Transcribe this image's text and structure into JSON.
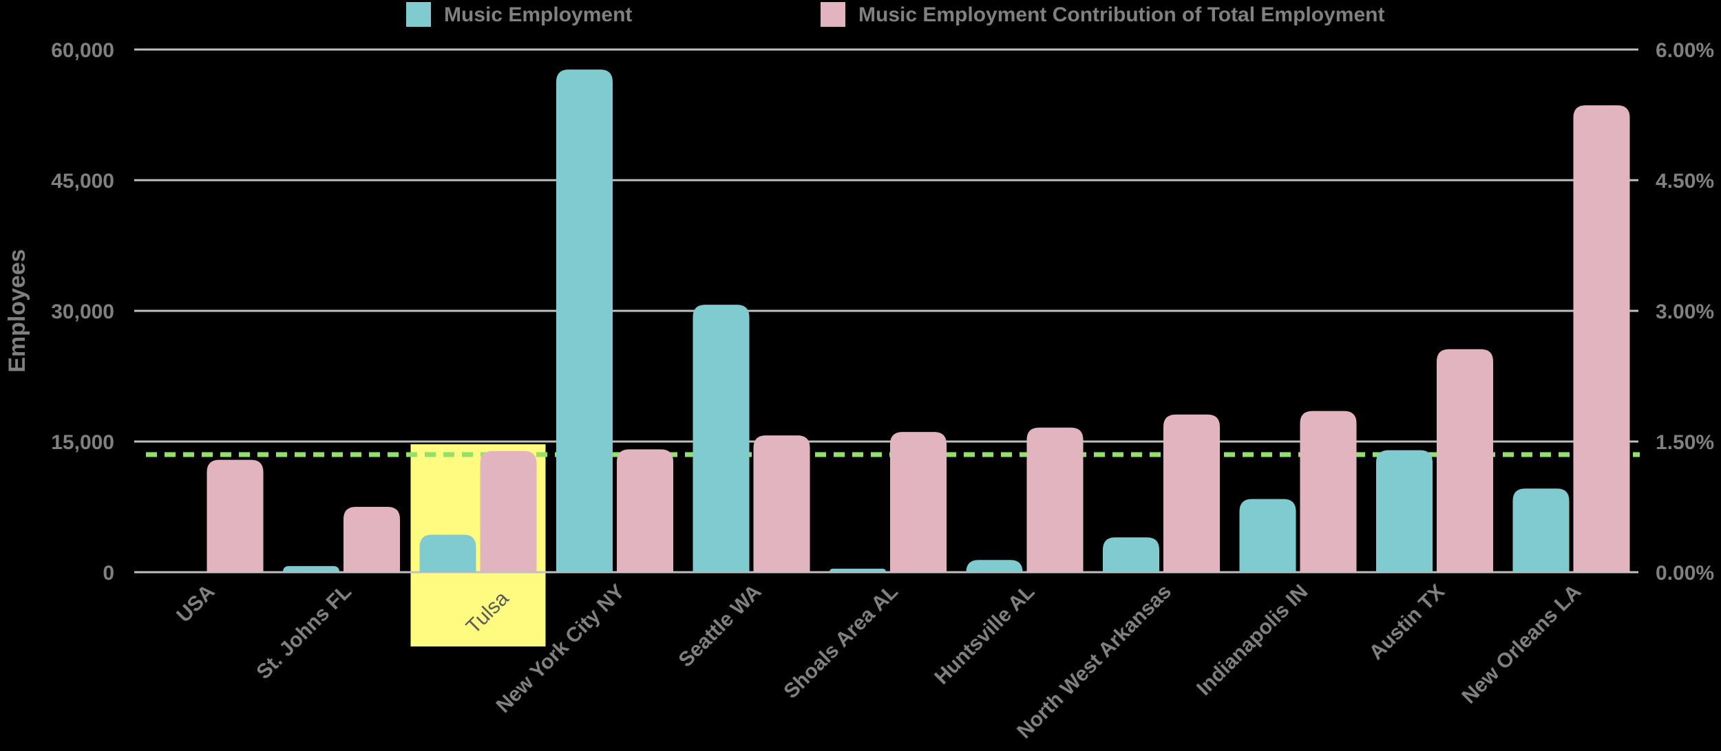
{
  "chart_data": {
    "type": "bar",
    "categories": [
      "USA",
      "St. Johns FL",
      "Tulsa",
      "New York City NY",
      "Seattle WA",
      "Shoals Area AL",
      "Huntsville AL",
      "North West Arkansas",
      "Indianapolis IN",
      "Austin TX",
      "New Orleans LA"
    ],
    "series": [
      {
        "name": "Music Employment",
        "axis": "left",
        "color": "#80cbcf",
        "values": [
          null,
          700,
          4300,
          57700,
          30700,
          400,
          1400,
          4000,
          8400,
          14000,
          9600
        ]
      },
      {
        "name": "Music Employment Contribution of Total Employment",
        "axis": "right",
        "color": "#e1b4bf",
        "values": [
          1.29,
          0.75,
          1.39,
          1.41,
          1.57,
          1.61,
          1.66,
          1.81,
          1.85,
          2.56,
          5.36
        ]
      }
    ],
    "y_left": {
      "label": "Employees",
      "range": [
        0,
        60000
      ],
      "ticks": [
        "0",
        "15,000",
        "30,000",
        "45,000",
        "60,000"
      ],
      "tick_values": [
        0,
        15000,
        30000,
        45000,
        60000
      ]
    },
    "y_right": {
      "range": [
        0,
        6
      ],
      "ticks": [
        "0.00%",
        "1.50%",
        "3.00%",
        "4.50%",
        "6.00%"
      ],
      "tick_values": [
        0,
        1.5,
        3,
        4.5,
        6
      ]
    },
    "reference_line": {
      "axis": "right",
      "value": 1.35,
      "color": "#90e26c",
      "style": "dashed"
    },
    "highlight": {
      "category": "Tulsa",
      "color": "#fffb80"
    },
    "grid": true,
    "legend_position": "top"
  }
}
